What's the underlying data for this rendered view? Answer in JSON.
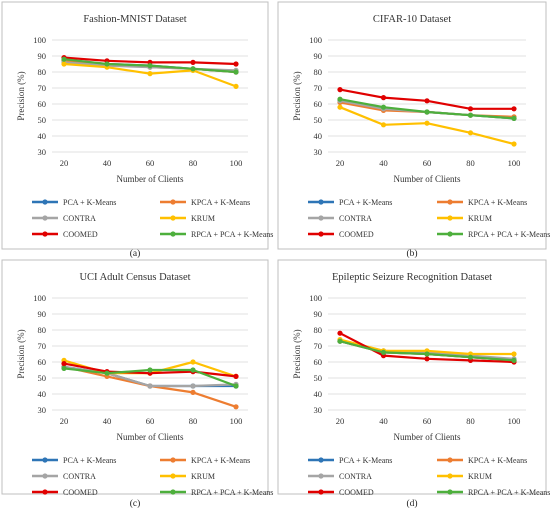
{
  "colors": {
    "PCA + K-Means": "#2e75b6",
    "KPCA + K-Means": "#ed7d31",
    "CONTRA": "#a5a5a5",
    "KRUM": "#ffc000",
    "COOMED": "#e00000",
    "RPCA + PCA + K-Means": "#4daf3c"
  },
  "chart_data": [
    {
      "type": "line",
      "title": "Fashion-MNIST Dataset",
      "caption": "(a)",
      "xlabel": "Number of Clients",
      "ylabel": "Precision (%)",
      "ylim": [
        30,
        100
      ],
      "yticks": [
        30,
        40,
        50,
        60,
        70,
        80,
        90,
        100
      ],
      "x": [
        20,
        40,
        60,
        80,
        100
      ],
      "grid": "horizontal",
      "legend_position": "bottom",
      "series": [
        {
          "name": "PCA + K-Means",
          "values": [
            87,
            85,
            84,
            82,
            80
          ]
        },
        {
          "name": "KPCA + K-Means",
          "values": [
            87,
            85,
            83,
            82,
            80
          ]
        },
        {
          "name": "CONTRA",
          "values": [
            86,
            84,
            83,
            82,
            81
          ]
        },
        {
          "name": "KRUM",
          "values": [
            85,
            83,
            79,
            81,
            71
          ]
        },
        {
          "name": "COOMED",
          "values": [
            89,
            87,
            86,
            86,
            85
          ]
        },
        {
          "name": "RPCA + PCA + K-Means",
          "values": [
            88,
            85,
            84,
            82,
            80
          ]
        }
      ]
    },
    {
      "type": "line",
      "title": "CIFAR-10 Dataset",
      "caption": "(b)",
      "xlabel": "Number of Clients",
      "ylabel": "Precision (%)",
      "ylim": [
        30,
        100
      ],
      "yticks": [
        30,
        40,
        50,
        60,
        70,
        80,
        90,
        100
      ],
      "x": [
        20,
        40,
        60,
        80,
        100
      ],
      "grid": "horizontal",
      "legend_position": "bottom",
      "series": [
        {
          "name": "PCA + K-Means",
          "values": [
            62,
            57,
            55,
            53,
            51
          ]
        },
        {
          "name": "KPCA + K-Means",
          "values": [
            61,
            56,
            55,
            53,
            52
          ]
        },
        {
          "name": "CONTRA",
          "values": [
            62,
            57,
            55,
            53,
            51
          ]
        },
        {
          "name": "KRUM",
          "values": [
            58,
            47,
            48,
            42,
            35
          ]
        },
        {
          "name": "COOMED",
          "values": [
            69,
            64,
            62,
            57,
            57
          ]
        },
        {
          "name": "RPCA + PCA + K-Means",
          "values": [
            63,
            58,
            55,
            53,
            51
          ]
        }
      ]
    },
    {
      "type": "line",
      "title": "UCI Adult Census Dataset",
      "caption": "(c)",
      "xlabel": "Number of Clients",
      "ylabel": "Precision (%)",
      "ylim": [
        30,
        100
      ],
      "yticks": [
        30,
        40,
        50,
        60,
        70,
        80,
        90,
        100
      ],
      "x": [
        20,
        40,
        60,
        80,
        100
      ],
      "grid": "horizontal",
      "legend_position": "bottom",
      "series": [
        {
          "name": "PCA + K-Means",
          "values": [
            57,
            53,
            45,
            45,
            45
          ]
        },
        {
          "name": "KPCA + K-Means",
          "values": [
            57,
            51,
            45,
            41,
            32
          ]
        },
        {
          "name": "CONTRA",
          "values": [
            57,
            53,
            45,
            45,
            46
          ]
        },
        {
          "name": "KRUM",
          "values": [
            61,
            53,
            53,
            60,
            51
          ]
        },
        {
          "name": "COOMED",
          "values": [
            59,
            54,
            53,
            54,
            51
          ]
        },
        {
          "name": "RPCA + PCA + K-Means",
          "values": [
            56,
            53,
            55,
            55,
            45
          ]
        }
      ]
    },
    {
      "type": "line",
      "title": "Epileptic Seizure Recognition Dataset",
      "caption": "(d)",
      "xlabel": "Number of Clients",
      "ylabel": "Precision (%)",
      "ylim": [
        30,
        100
      ],
      "yticks": [
        30,
        40,
        50,
        60,
        70,
        80,
        90,
        100
      ],
      "x": [
        20,
        40,
        60,
        80,
        100
      ],
      "grid": "horizontal",
      "legend_position": "bottom",
      "series": [
        {
          "name": "PCA + K-Means",
          "values": [
            73,
            66,
            65,
            63,
            61
          ]
        },
        {
          "name": "KPCA + K-Means",
          "values": [
            73,
            66,
            65,
            63,
            61
          ]
        },
        {
          "name": "CONTRA",
          "values": [
            73,
            67,
            66,
            64,
            62
          ]
        },
        {
          "name": "KRUM",
          "values": [
            74,
            67,
            67,
            65,
            65
          ]
        },
        {
          "name": "COOMED",
          "values": [
            78,
            64,
            62,
            61,
            60
          ]
        },
        {
          "name": "RPCA + PCA + K-Means",
          "values": [
            73,
            66,
            65,
            63,
            61
          ]
        }
      ]
    }
  ]
}
